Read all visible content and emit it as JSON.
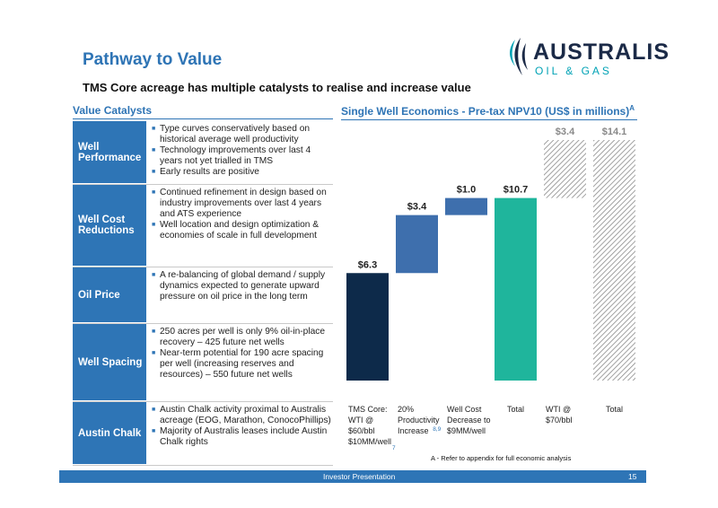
{
  "title": "Pathway to Value",
  "subtitle": "TMS Core acreage has multiple catalysts to realise and increase value",
  "logo": {
    "name": "AUSTRALIS",
    "tagline": "OIL & GAS"
  },
  "sections": {
    "left": "Value Catalysts",
    "right": "Single Well Economics - Pre-tax NPV10 (US$ in millions)",
    "right_sup": "A"
  },
  "catalysts": [
    {
      "label": "Well Performance",
      "bullets": [
        "Type curves conservatively based on historical average well productivity",
        "Technology improvements over last 4 years not yet trialled in TMS",
        "Early results are positive"
      ]
    },
    {
      "label": "Well Cost Reductions",
      "bullets": [
        "Continued refinement in design based on industry improvements over last 4 years and ATS experience",
        "Well location and design optimization & economies of scale in full development"
      ]
    },
    {
      "label": "Oil Price",
      "bullets": [
        "A re-balancing of global demand / supply dynamics expected to generate upward pressure on oil price in the long term"
      ]
    },
    {
      "label": "Well Spacing",
      "bullets": [
        "250 acres per well is only 9% oil-in-place recovery – 425 future net wells",
        "Near-term potential for 190 acre spacing per well  (increasing reserves and resources) – 550 future net wells"
      ]
    },
    {
      "label": "Austin Chalk",
      "bullets": [
        "Austin Chalk activity proximal to Australis acreage (EOG, Marathon, ConocoPhillips)",
        "Majority of Australis leases include Austin Chalk rights"
      ]
    }
  ],
  "chart_data": {
    "type": "bar",
    "subtype": "waterfall",
    "ylim": [
      0,
      14.1
    ],
    "bars": [
      {
        "category_lines": [
          "TMS Core:",
          "WTI @",
          "$60/bbl",
          "$10MM/well"
        ],
        "sup": "7",
        "value": 6.3,
        "base": 0,
        "label": "$6.3",
        "color": "#0d2a4a",
        "style": "solid"
      },
      {
        "category_lines": [
          "20%",
          "Productivity",
          "Increase"
        ],
        "sup": "8,9",
        "value": 3.4,
        "base": 6.3,
        "label": "$3.4",
        "color": "#3e6fad",
        "style": "solid"
      },
      {
        "category_lines": [
          "Well Cost",
          "Decrease to",
          "$9MM/well"
        ],
        "sup": "",
        "value": 1.0,
        "base": 9.7,
        "label": "$1.0",
        "color": "#3e6fad",
        "style": "solid"
      },
      {
        "category_lines": [
          "Total"
        ],
        "sup": "",
        "value": 10.7,
        "base": 0,
        "label": "$10.7",
        "color": "#1fb59c",
        "style": "solid"
      },
      {
        "category_lines": [
          "WTI @",
          "$70/bbl"
        ],
        "sup": "",
        "value": 3.4,
        "base": 10.7,
        "label": "$3.4",
        "color": "#8a8a8a",
        "style": "hatched"
      },
      {
        "category_lines": [
          "Total"
        ],
        "sup": "",
        "value": 14.1,
        "base": 0,
        "label": "$14.1",
        "color": "#8a8a8a",
        "style": "hatched"
      }
    ]
  },
  "footnote": "A - Refer to appendix for full economic analysis",
  "footer": {
    "text": "Investor Presentation",
    "page": "15"
  }
}
